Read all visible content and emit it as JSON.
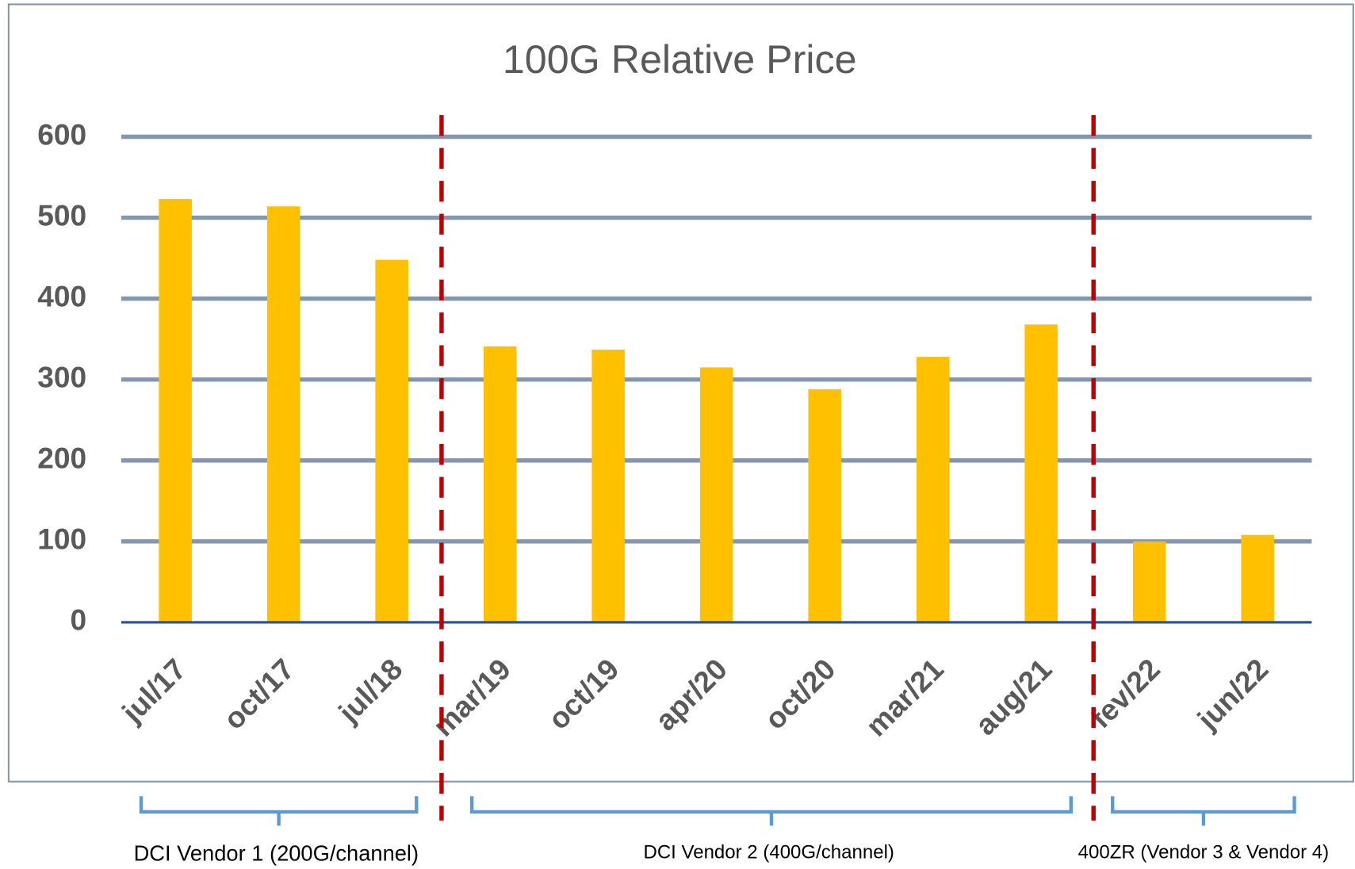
{
  "chart_data": {
    "type": "bar",
    "title": "100G Relative Price",
    "categories": [
      "jul/17",
      "oct/17",
      "jul/18",
      "mar/19",
      "oct/19",
      "apr/20",
      "oct/20",
      "mar/21",
      "aug/21",
      "fev/22",
      "jun/22"
    ],
    "values": [
      523,
      514,
      448,
      341,
      337,
      315,
      288,
      328,
      368,
      100,
      108
    ],
    "color": "#ffc000",
    "ylim": [
      0,
      600
    ],
    "yticks": [
      0,
      100,
      200,
      300,
      400,
      500,
      600
    ],
    "grid": true,
    "annotations": [
      "DCI Vendor 1 (200G/channel)",
      "DCI Vendor 2 (400G/channel)",
      "400ZR (Vendor 3 & Vendor 4)"
    ]
  }
}
